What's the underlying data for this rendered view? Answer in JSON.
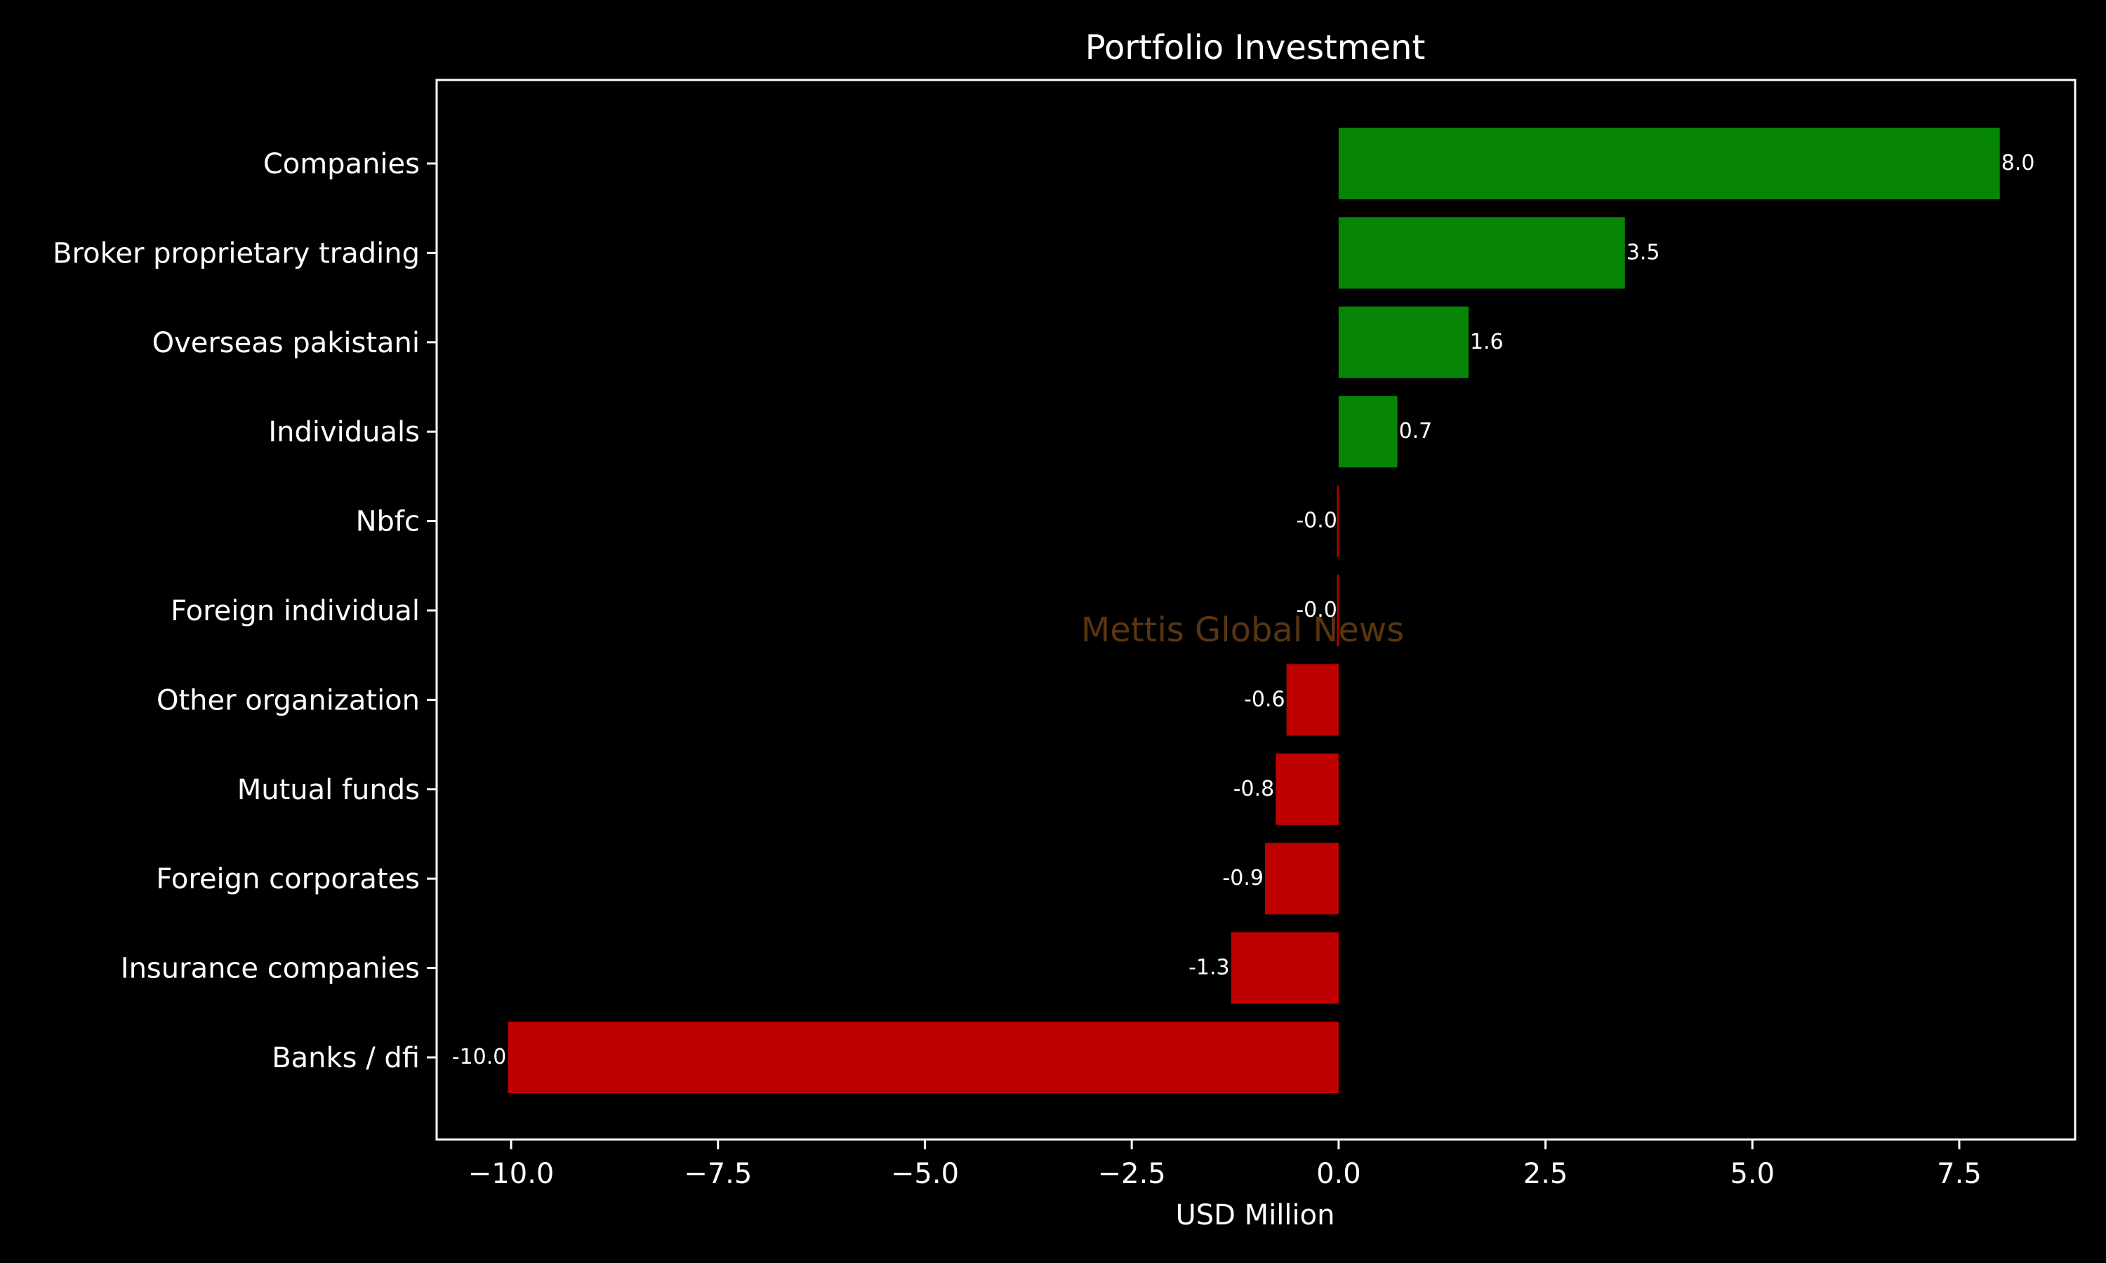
{
  "chart_data": {
    "type": "bar",
    "orientation": "horizontal",
    "title": "Portfolio Investment",
    "xlabel": "USD Million",
    "ylabel": "",
    "xlim": [
      -10.9,
      8.9
    ],
    "xticks": [
      -10.0,
      -7.5,
      -5.0,
      -2.5,
      0.0,
      2.5,
      5.0,
      7.5
    ],
    "xtick_labels": [
      "−10.0",
      "−7.5",
      "−5.0",
      "−2.5",
      "0.0",
      "2.5",
      "5.0",
      "7.5"
    ],
    "grid": false,
    "categories": [
      "Companies",
      "Broker proprietary trading",
      "Overseas pakistani",
      "Individuals",
      "Nbfc",
      "Foreign individual",
      "Other organization",
      "Mutual funds",
      "Foreign corporates ",
      "Insurance companies",
      "Banks / dfi"
    ],
    "values": [
      7.99,
      3.46,
      1.57,
      0.71,
      -0.02,
      -0.02,
      -0.63,
      -0.76,
      -0.89,
      -1.3,
      -10.04
    ],
    "data_labels": [
      "8.0",
      "3.5",
      "1.6",
      "0.7",
      "-0.0",
      "-0.0",
      "-0.6",
      "-0.8",
      "-0.9",
      "-1.3",
      "-10.0"
    ],
    "colors": {
      "positive": "#078507",
      "negative": "#bf0000",
      "background": "#000000",
      "text": "#ffffff",
      "watermark": "#5a3510"
    },
    "watermark": "Mettis Global News"
  }
}
